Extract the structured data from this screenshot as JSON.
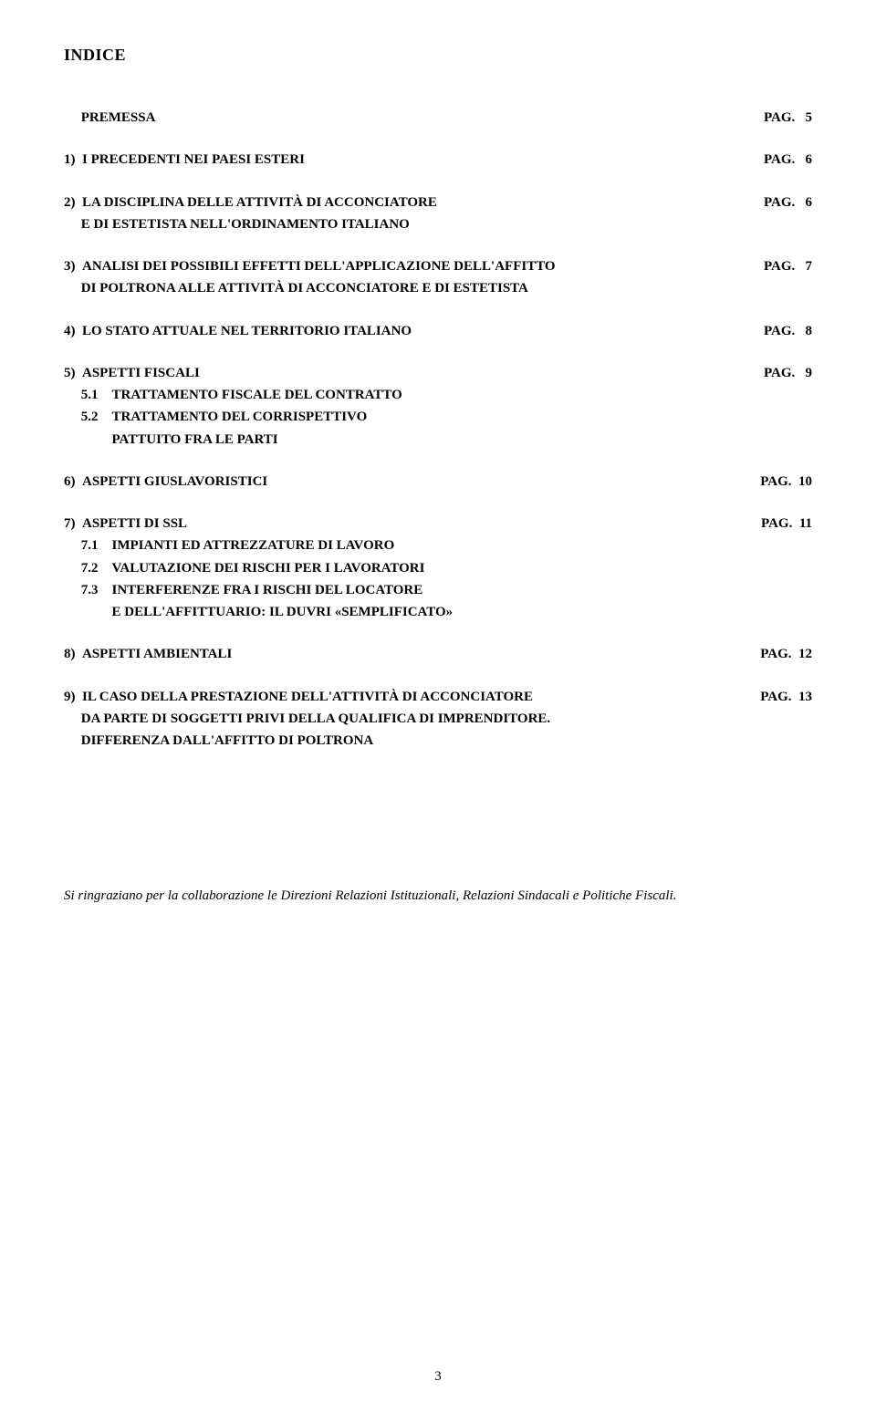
{
  "title": "INDICE",
  "toc": [
    {
      "type": "single",
      "left": "&nbsp;&nbsp;&nbsp;&nbsp;&nbsp;PREMESSA",
      "right": "PAG.&nbsp;&nbsp;&nbsp;5"
    },
    {
      "type": "single",
      "left": "1)&nbsp;&nbsp;I PRECEDENTI NEI PAESI ESTERI",
      "right": "PAG.&nbsp;&nbsp;&nbsp;6"
    },
    {
      "type": "multi",
      "lines": [
        {
          "left": "2)&nbsp;&nbsp;LA DISCIPLINA DELLE ATTIVITÀ DI ACCONCIATORE",
          "right": "PAG.&nbsp;&nbsp;&nbsp;6"
        },
        {
          "left": "&nbsp;&nbsp;&nbsp;&nbsp;&nbsp;E DI ESTETISTA NELL'ORDINAMENTO ITALIANO",
          "right": ""
        }
      ]
    },
    {
      "type": "multi",
      "lines": [
        {
          "left": "3)&nbsp;&nbsp;ANALISI DEI POSSIBILI EFFETTI DELL'APPLICAZIONE DELL'AFFITTO",
          "right": "PAG.&nbsp;&nbsp;&nbsp;7"
        },
        {
          "left": "&nbsp;&nbsp;&nbsp;&nbsp;&nbsp;DI POLTRONA ALLE ATTIVITÀ DI ACCONCIATORE E DI ESTETISTA",
          "right": ""
        }
      ]
    },
    {
      "type": "single",
      "left": "4)&nbsp;&nbsp;LO STATO ATTUALE NEL TERRITORIO ITALIANO",
      "right": "PAG.&nbsp;&nbsp;&nbsp;8"
    },
    {
      "type": "multi",
      "lines": [
        {
          "left": "5)&nbsp;&nbsp;ASPETTI FISCALI",
          "right": "PAG.&nbsp;&nbsp;&nbsp;9"
        },
        {
          "left": "&nbsp;&nbsp;&nbsp;&nbsp;&nbsp;5.1&nbsp;&nbsp;&nbsp;&nbsp;TRATTAMENTO FISCALE DEL CONTRATTO",
          "right": ""
        },
        {
          "left": "&nbsp;&nbsp;&nbsp;&nbsp;&nbsp;5.2&nbsp;&nbsp;&nbsp;&nbsp;TRATTAMENTO DEL CORRISPETTIVO",
          "right": ""
        },
        {
          "left": "&nbsp;&nbsp;&nbsp;&nbsp;&nbsp;&nbsp;&nbsp;&nbsp;&nbsp;&nbsp;&nbsp;&nbsp;&nbsp;&nbsp;PATTUITO FRA LE PARTI",
          "right": ""
        }
      ]
    },
    {
      "type": "single",
      "left": "6)&nbsp;&nbsp;ASPETTI GIUSLAVORISTICI",
      "right": "PAG.&nbsp;&nbsp;10"
    },
    {
      "type": "multi",
      "lines": [
        {
          "left": "7)&nbsp;&nbsp;ASPETTI DI SSL",
          "right": "PAG.&nbsp;&nbsp;11"
        },
        {
          "left": "&nbsp;&nbsp;&nbsp;&nbsp;&nbsp;7.1&nbsp;&nbsp;&nbsp;&nbsp;IMPIANTI ED ATTREZZATURE DI LAVORO",
          "right": ""
        },
        {
          "left": "&nbsp;&nbsp;&nbsp;&nbsp;&nbsp;7.2&nbsp;&nbsp;&nbsp;&nbsp;VALUTAZIONE DEI RISCHI PER I LAVORATORI",
          "right": ""
        },
        {
          "left": "&nbsp;&nbsp;&nbsp;&nbsp;&nbsp;7.3&nbsp;&nbsp;&nbsp;&nbsp;INTERFERENZE FRA I RISCHI DEL LOCATORE",
          "right": ""
        },
        {
          "left": "&nbsp;&nbsp;&nbsp;&nbsp;&nbsp;&nbsp;&nbsp;&nbsp;&nbsp;&nbsp;&nbsp;&nbsp;&nbsp;&nbsp;E DELL'AFFITTUARIO: IL DUVRI «SEMPLIFICATO»",
          "right": ""
        }
      ]
    },
    {
      "type": "single",
      "left": "8)&nbsp;&nbsp;ASPETTI AMBIENTALI",
      "right": "PAG.&nbsp;&nbsp;12"
    },
    {
      "type": "multi",
      "lines": [
        {
          "left": "9)&nbsp;&nbsp;IL CASO DELLA PRESTAZIONE DELL'ATTIVITÀ DI ACCONCIATORE",
          "right": "PAG.&nbsp;&nbsp;13"
        },
        {
          "left": "&nbsp;&nbsp;&nbsp;&nbsp;&nbsp;DA PARTE DI SOGGETTI PRIVI DELLA QUALIFICA DI IMPRENDITORE.",
          "right": ""
        },
        {
          "left": "&nbsp;&nbsp;&nbsp;&nbsp;&nbsp;DIFFERENZA DALL'AFFITTO DI POLTRONA",
          "right": ""
        }
      ]
    }
  ],
  "credits": "Si ringraziano per la collaborazione le Direzioni Relazioni Istituzionali, Relazioni Sindacali e Politiche Fiscali.",
  "pageNumber": "3"
}
